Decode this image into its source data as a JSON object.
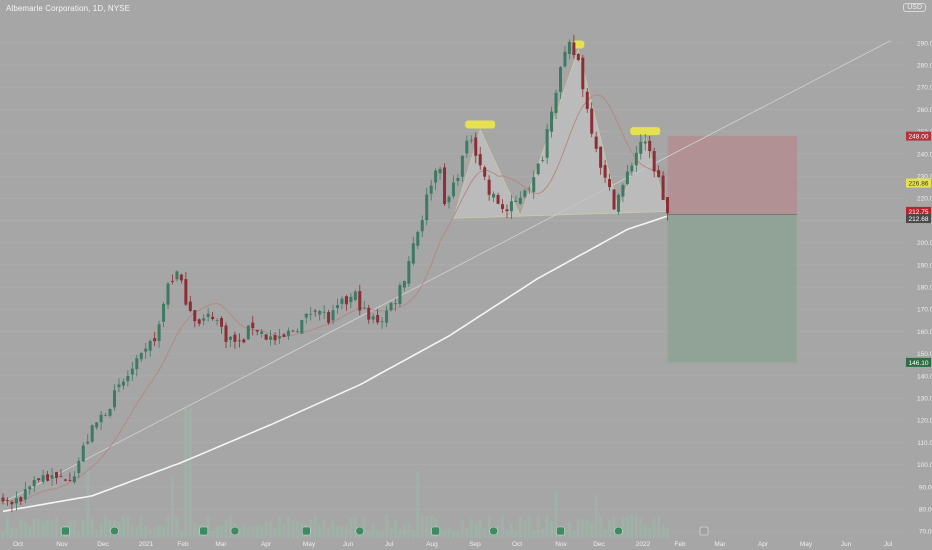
{
  "header": {
    "title": "Albemarle Corporation, 1D, NYSE",
    "currency": "USD"
  },
  "colors": {
    "background": "#a6a6a6",
    "up": "#3d7a63",
    "down": "#8b2e35",
    "ma_fast": "#b38781",
    "ma_slow": "#f5f5f5",
    "trendline": "#d2d2d2",
    "pattern_fill": "#c3c3c3",
    "pattern_label": "#e6e14e",
    "stop_zone": "#b48f92",
    "target_zone": "#8fa396",
    "volume": "#9db4a7"
  },
  "chart_data": {
    "type": "candlestick",
    "title": "Albemarle Corporation, 1D, NYSE",
    "y_axis": {
      "min": 67,
      "max": 303,
      "ticks": [
        70,
        80,
        90,
        100,
        110,
        120,
        130,
        140,
        150,
        160,
        170,
        180,
        190,
        200,
        210,
        220,
        230,
        240,
        250,
        260,
        270,
        280,
        290
      ]
    },
    "x_axis": {
      "labels": [
        "Oct",
        "Nov",
        "Dec",
        "2021",
        "Feb",
        "Mar",
        "Apr",
        "May",
        "Jun",
        "Jul",
        "Aug",
        "Sep",
        "Oct",
        "Nov",
        "Dec",
        "2022",
        "Feb",
        "Mar",
        "Apr",
        "May",
        "Jun",
        "Jul"
      ]
    },
    "price_path": [
      [
        0,
        84
      ],
      [
        3,
        82
      ],
      [
        6,
        92
      ],
      [
        9,
        95
      ],
      [
        12,
        93
      ],
      [
        16,
        97
      ],
      [
        19,
        112
      ],
      [
        24,
        128
      ],
      [
        28,
        140
      ],
      [
        32,
        150
      ],
      [
        35,
        162
      ],
      [
        37,
        182
      ],
      [
        39,
        186
      ],
      [
        41,
        175
      ],
      [
        44,
        163
      ],
      [
        47,
        168
      ],
      [
        50,
        158
      ],
      [
        53,
        154
      ],
      [
        56,
        163
      ],
      [
        59,
        158
      ],
      [
        62,
        155
      ],
      [
        65,
        161
      ],
      [
        68,
        166
      ],
      [
        70,
        172
      ],
      [
        73,
        165
      ],
      [
        76,
        172
      ],
      [
        79,
        176
      ],
      [
        82,
        165
      ],
      [
        85,
        166
      ],
      [
        88,
        175
      ],
      [
        90,
        185
      ],
      [
        92,
        200
      ],
      [
        94,
        212
      ],
      [
        96,
        228
      ],
      [
        98,
        236
      ],
      [
        99,
        215
      ],
      [
        101,
        226
      ],
      [
        103,
        238
      ],
      [
        105,
        248
      ],
      [
        107,
        236
      ],
      [
        109,
        222
      ],
      [
        111,
        218
      ],
      [
        113,
        214
      ],
      [
        115,
        218
      ],
      [
        117,
        225
      ],
      [
        119,
        228
      ],
      [
        121,
        240
      ],
      [
        123,
        262
      ],
      [
        125,
        278
      ],
      [
        127,
        288
      ],
      [
        129,
        282
      ],
      [
        131,
        260
      ],
      [
        133,
        244
      ],
      [
        135,
        228
      ],
      [
        137,
        218
      ],
      [
        139,
        225
      ],
      [
        141,
        236
      ],
      [
        143,
        246
      ],
      [
        145,
        240
      ],
      [
        147,
        228
      ],
      [
        149,
        213
      ]
    ],
    "moving_average_200": [
      [
        0,
        79
      ],
      [
        20,
        86
      ],
      [
        40,
        101
      ],
      [
        60,
        118
      ],
      [
        80,
        136
      ],
      [
        100,
        158
      ],
      [
        120,
        184
      ],
      [
        140,
        206
      ],
      [
        149,
        212
      ]
    ],
    "trendline": {
      "from": [
        0,
        83
      ],
      "to": [
        199,
        291
      ]
    },
    "pattern": {
      "name": "head-and-shoulders",
      "points": [
        [
          101,
          211
        ],
        [
          107,
          251
        ],
        [
          116,
          212
        ],
        [
          129,
          287
        ],
        [
          138,
          215
        ],
        [
          144,
          248
        ],
        [
          149,
          214
        ]
      ],
      "labels": [
        [
          107,
          251
        ],
        [
          129,
          287
        ],
        [
          144,
          248
        ]
      ]
    },
    "position": {
      "entry": 212.75,
      "stop": 248.0,
      "target": 146.1,
      "from_index": 149,
      "to_index": 178
    },
    "price_tags": {
      "stop": "248.00",
      "current_ma": "226.86",
      "entry": "212.75",
      "last": "212.68",
      "target": "146.10"
    }
  }
}
